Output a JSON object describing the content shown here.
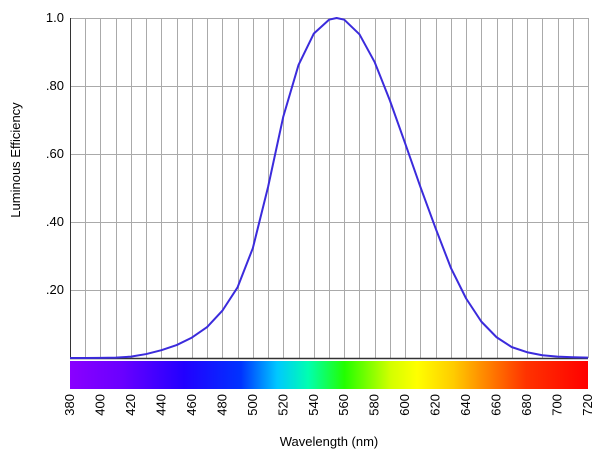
{
  "chart_data": {
    "type": "line",
    "title": "",
    "xlabel": "Wavelength (nm)",
    "ylabel": "Luminous Efficiency",
    "xlim": [
      380,
      720
    ],
    "ylim": [
      0,
      1.0
    ],
    "x_ticks": [
      380,
      400,
      420,
      440,
      460,
      480,
      500,
      520,
      540,
      560,
      580,
      600,
      620,
      640,
      660,
      680,
      700,
      720
    ],
    "x_tick_labels": [
      "380",
      "400",
      "420",
      "440",
      "460",
      "480",
      "500",
      "520",
      "540",
      "560",
      "580",
      "600",
      "620",
      "640",
      "660",
      "680",
      "700",
      "720"
    ],
    "y_ticks": [
      0.2,
      0.4,
      0.6,
      0.8,
      1.0
    ],
    "y_tick_labels": [
      ".20",
      ".40",
      ".60",
      ".80",
      "1.0"
    ],
    "grid": true,
    "series": [
      {
        "color": "#3b2bdc",
        "x": [
          380,
          390,
          400,
          410,
          420,
          430,
          440,
          450,
          460,
          470,
          480,
          490,
          500,
          510,
          520,
          530,
          540,
          550,
          555,
          560,
          570,
          580,
          590,
          600,
          610,
          620,
          630,
          640,
          650,
          660,
          670,
          680,
          690,
          700,
          710,
          720
        ],
        "y": [
          0.0,
          0.0001,
          0.0004,
          0.0012,
          0.004,
          0.0116,
          0.023,
          0.038,
          0.06,
          0.091,
          0.139,
          0.208,
          0.323,
          0.503,
          0.71,
          0.862,
          0.954,
          0.995,
          1.0,
          0.995,
          0.952,
          0.87,
          0.757,
          0.631,
          0.503,
          0.381,
          0.265,
          0.175,
          0.107,
          0.061,
          0.032,
          0.017,
          0.0082,
          0.0041,
          0.0021,
          0.001
        ]
      }
    ],
    "spectrum_bar": true
  }
}
